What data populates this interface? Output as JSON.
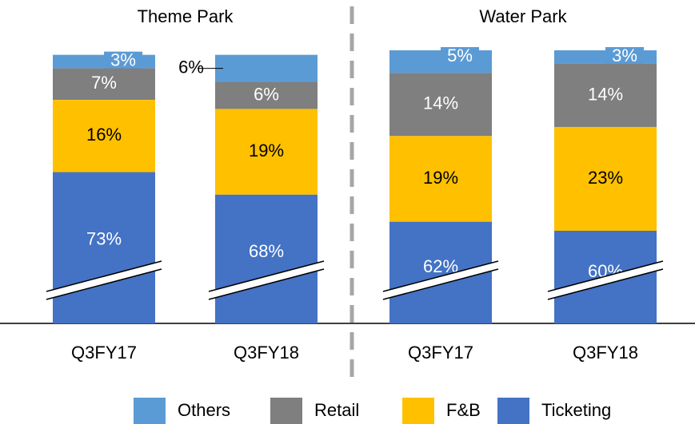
{
  "chart_data": {
    "type": "stacked-bar",
    "groups": [
      "Theme Park",
      "Water Park"
    ],
    "categories": [
      "Q3FY17",
      "Q3FY18",
      "Q3FY17",
      "Q3FY18"
    ],
    "series": [
      {
        "name": "Others",
        "color": "#5b9bd5",
        "values": [
          3,
          6,
          5,
          3
        ],
        "value_labels": [
          "3%",
          "6%",
          "5%",
          "3%"
        ]
      },
      {
        "name": "Retail",
        "color": "#7f7f7f",
        "values": [
          7,
          6,
          14,
          14
        ],
        "value_labels": [
          "7%",
          "6%",
          "14%",
          "14%"
        ]
      },
      {
        "name": "F&B",
        "color": "#ffc000",
        "values": [
          16,
          19,
          19,
          23
        ],
        "value_labels": [
          "16%",
          "19%",
          "19%",
          "23%"
        ]
      },
      {
        "name": "Ticketing",
        "color": "#4472c4",
        "values": [
          73,
          68,
          62,
          60
        ],
        "value_labels": [
          "73%",
          "68%",
          "62%",
          "60%"
        ]
      }
    ],
    "legend": "bottom"
  }
}
